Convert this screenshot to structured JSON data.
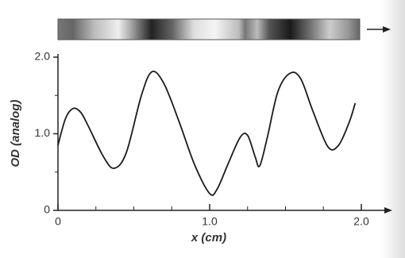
{
  "chart_data": {
    "type": "line",
    "xlabel": "x (cm)",
    "ylabel": "OD (analog)",
    "x": [
      0,
      0.05,
      0.1,
      0.15,
      0.2,
      0.3,
      0.37,
      0.45,
      0.55,
      0.62,
      0.7,
      0.8,
      0.9,
      1.0,
      1.05,
      1.12,
      1.2,
      1.25,
      1.3,
      1.33,
      1.38,
      1.45,
      1.53,
      1.6,
      1.68,
      1.78,
      1.85,
      1.92,
      1.96
    ],
    "values": [
      0.85,
      1.2,
      1.33,
      1.28,
      1.1,
      0.7,
      0.55,
      0.75,
      1.5,
      1.81,
      1.65,
      1.15,
      0.6,
      0.22,
      0.28,
      0.6,
      0.95,
      0.98,
      0.7,
      0.58,
      0.95,
      1.55,
      1.79,
      1.72,
      1.3,
      0.83,
      0.85,
      1.15,
      1.4
    ],
    "color": "#1a1a1a",
    "xlim": [
      0,
      2
    ],
    "ylim": [
      0,
      2
    ],
    "xticks": [
      0,
      {
        "value": 1,
        "label": "1.0"
      },
      {
        "value": 2,
        "label": "2.0"
      }
    ],
    "yticks": [
      0,
      {
        "value": 1,
        "label": "1.0"
      },
      {
        "value": 2,
        "label": "2.0"
      }
    ],
    "xminorticks": [
      0.25,
      0.5,
      0.75,
      1.25,
      1.5,
      1.75
    ],
    "yminorticks": [
      0.5,
      1.5
    ]
  }
}
